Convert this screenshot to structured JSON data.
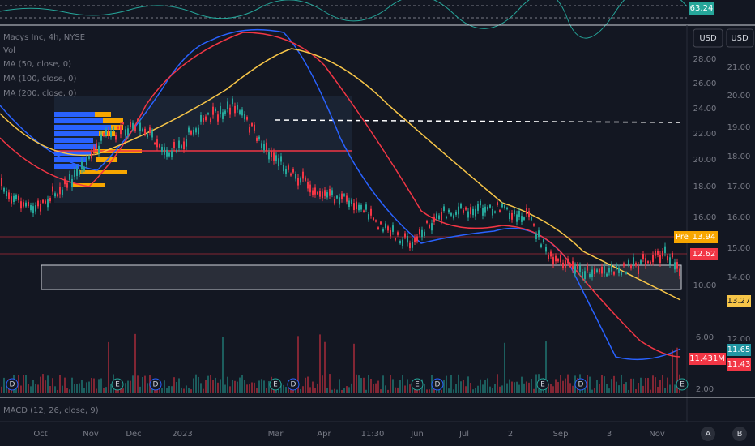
{
  "rsi": {
    "value": "63.24"
  },
  "currency": [
    "USD",
    "USD"
  ],
  "legend": {
    "symbol": "Macys Inc, 4h, NYSE",
    "volume": "Vol",
    "ma": [
      "MA (50, close, 0)",
      "MA (100, close, 0)",
      "MA (200, close, 0)"
    ]
  },
  "price_scale_left": [
    [
      "28.00",
      73
    ],
    [
      "26.00",
      103
    ],
    [
      "24.00",
      134
    ],
    [
      "22.00",
      165
    ],
    [
      "20.00",
      197
    ],
    [
      "18.00",
      230
    ],
    [
      "16.00",
      268
    ],
    [
      "10.00",
      352
    ],
    [
      "6.00",
      416
    ],
    [
      "2.00",
      480
    ]
  ],
  "price_scale_right": [
    [
      "21.00",
      83
    ],
    [
      "20.00",
      118
    ],
    [
      "19.00",
      157
    ],
    [
      "18.00",
      193
    ],
    [
      "17.00",
      230
    ],
    [
      "16.00",
      268
    ],
    [
      "15.00",
      306
    ],
    [
      "14.00",
      342
    ],
    [
      "12.00",
      418
    ]
  ],
  "badges": {
    "pre": "Pre",
    "pre_price": "13.94",
    "last": "12.62",
    "ma": "13.27",
    "ma2": "11.65",
    "ma3": "11.43",
    "volume": "11.431M"
  },
  "events": [
    "D",
    "E",
    "D",
    "E",
    "D",
    "E",
    "D",
    "E",
    "D",
    "E"
  ],
  "macd": "MACD (12, 26, close, 9)",
  "time_axis": [
    [
      "Oct",
      50
    ],
    [
      "Nov",
      112
    ],
    [
      "Dec",
      165
    ],
    [
      "2023",
      225
    ],
    [
      "Mar",
      340
    ],
    [
      "Apr",
      400
    ],
    [
      "11:30",
      460
    ],
    [
      "Jun",
      515
    ],
    [
      "Jul",
      573
    ],
    [
      "2",
      630
    ],
    [
      "Sep",
      692
    ],
    [
      "3",
      752
    ],
    [
      "Nov",
      811
    ]
  ],
  "corner": [
    "A",
    "B"
  ]
}
